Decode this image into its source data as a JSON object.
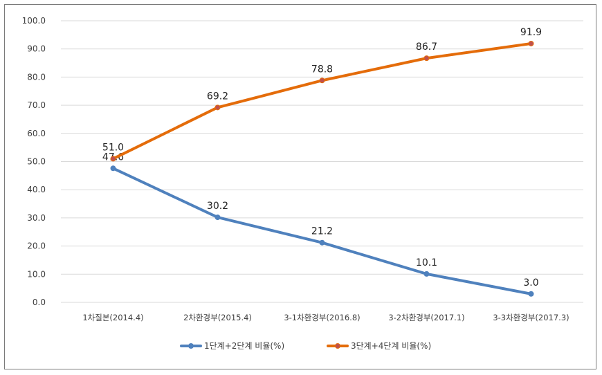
{
  "chart_data": {
    "type": "line",
    "categories": [
      "1차질본(2014.4)",
      "2차환경부(2015.4)",
      "3-1차환경부(2016.8)",
      "3-2차환경부(2017.1)",
      "3-3차환경부(2017.3)"
    ],
    "series": [
      {
        "name": "1단계+2단계 비율(%)",
        "values": [
          47.6,
          30.2,
          21.2,
          10.1,
          3.0
        ],
        "color": "#4f81bd",
        "marker_color": "#4f81bd"
      },
      {
        "name": "3단계+4단계 비율(%)",
        "values": [
          51.0,
          69.2,
          78.8,
          86.7,
          91.9
        ],
        "color": "#e46c0a",
        "marker_color": "#c0504d"
      }
    ],
    "ylim": [
      0,
      100
    ],
    "yticks": [
      0,
      10,
      20,
      30,
      40,
      50,
      60,
      70,
      80,
      90,
      100
    ],
    "ytick_format": "one-decimal",
    "grid": true,
    "legend": "bottom",
    "data_labels": true
  }
}
